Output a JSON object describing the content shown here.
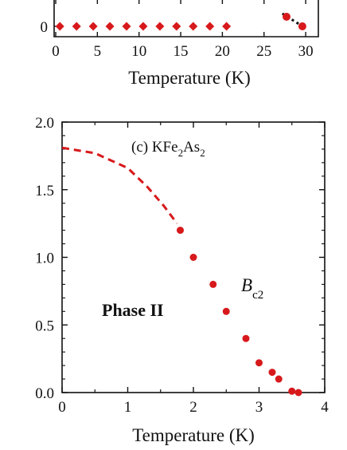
{
  "chart_data": [
    {
      "type": "scatter",
      "panel": "top (partial)",
      "xlabel": "Temperature (K)",
      "ylabel": "",
      "xlim": [
        0,
        32
      ],
      "x_ticks": [
        "0",
        "5",
        "10",
        "15",
        "20",
        "25",
        "30"
      ],
      "y_ticks": [
        "0"
      ],
      "series": [
        {
          "color": "#d7191c",
          "marker": "diamond",
          "points": [
            [
              0.5,
              0
            ],
            [
              2.5,
              0
            ],
            [
              4.5,
              0
            ],
            [
              6.5,
              0
            ],
            [
              8.5,
              0
            ],
            [
              10.5,
              0
            ],
            [
              12.5,
              0
            ],
            [
              14.5,
              0
            ],
            [
              16.5,
              0
            ],
            [
              18.5,
              0
            ],
            [
              20.5,
              0
            ]
          ]
        },
        {
          "color": "#d7191c",
          "marker": "circle",
          "points": [
            [
              27.7,
              1.2
            ],
            [
              29.6,
              0
            ]
          ]
        }
      ],
      "fit_line": {
        "color": "#111111",
        "style": "dotted",
        "points": [
          [
            27.2,
            1.6
          ],
          [
            29.7,
            -0.05
          ]
        ]
      },
      "grid": false
    },
    {
      "type": "scatter",
      "panel": "bottom",
      "title": "(c) KFe2As2",
      "title_parts": {
        "prefix": "(c) KFe",
        "sub1": "2",
        "mid": "As",
        "sub2": "2"
      },
      "xlabel": "Temperature (K)",
      "ylabel": "",
      "xlim": [
        0,
        4
      ],
      "ylim": [
        0,
        2
      ],
      "x_ticks": [
        "0",
        "1",
        "2",
        "3",
        "4"
      ],
      "y_ticks": [
        "0.0",
        "0.5",
        "1.0",
        "1.5",
        "2.0"
      ],
      "series": [
        {
          "color": "#d7191c",
          "marker": "circle",
          "x": [
            1.8,
            2.0,
            2.3,
            2.5,
            2.8,
            3.0,
            3.2,
            3.3,
            3.5,
            3.6
          ],
          "y": [
            1.2,
            1.0,
            0.8,
            0.6,
            0.4,
            0.22,
            0.15,
            0.1,
            0.01,
            0.0
          ]
        }
      ],
      "extrapolation": {
        "color": "#d7191c",
        "style": "dashed",
        "x": [
          0,
          0.5,
          1.0,
          1.3,
          1.55,
          1.75
        ],
        "y": [
          1.81,
          1.77,
          1.66,
          1.52,
          1.38,
          1.25
        ]
      },
      "annotations": {
        "phase_label": "Phase II",
        "field_symbol": "B",
        "field_subscript": "c2"
      },
      "grid": false
    }
  ]
}
